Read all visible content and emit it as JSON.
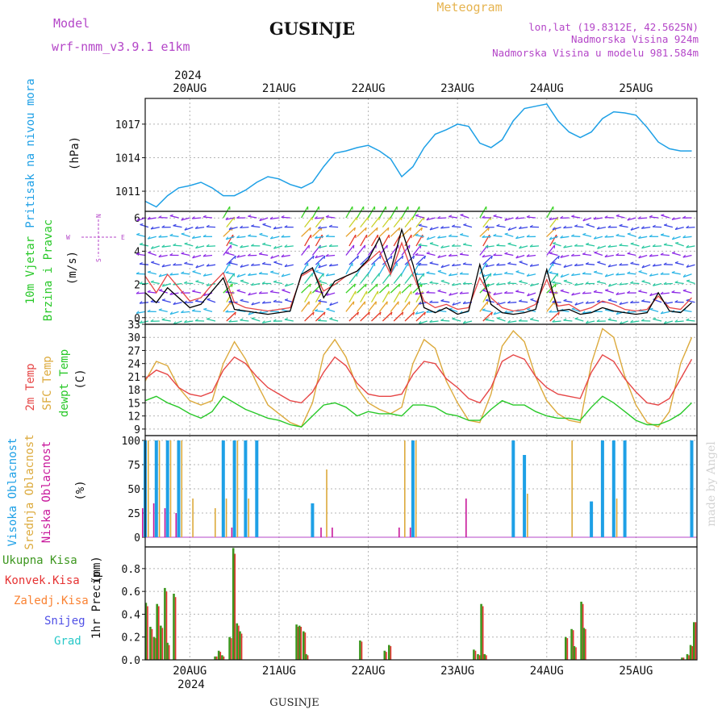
{
  "header": {
    "model_label": "Model",
    "model_name": "wrf-nmm_v3.9.1 e1km",
    "station_title": "GUSINJE",
    "chart_title": "Meteogram",
    "lonlat": "lon,lat (19.8312E, 42.5625N)",
    "altitude": "Nadmorska Visina 924m",
    "altitude_model": "Nadmorska Visina u modelu 981.584m"
  },
  "footer": {
    "station": "GUSINJE",
    "credit": "made by Angel"
  },
  "x_axis": {
    "year": "2024",
    "days": [
      "20AUG",
      "21AUG",
      "22AUG",
      "23AUG",
      "24AUG",
      "25AUG"
    ]
  },
  "colors": {
    "pressure": "#1ea0e6",
    "temp2m": "#e64646",
    "sfc": "#dcaa3c",
    "dewpt": "#28c828",
    "high_cloud": "#1ea0e6",
    "mid_cloud": "#dcaa3c",
    "low_cloud": "#c8189b",
    "total_precip": "#3c961e",
    "conv_precip": "#e63232",
    "frozen": "#fa8232",
    "snow": "#5050e6",
    "graupel": "#28c8c8",
    "wind_speed": "#000000",
    "wind_gust": "#e64646"
  },
  "chart_data": [
    {
      "id": "pressure",
      "type": "line",
      "ylabel_top": "Pritisak na nivou mora",
      "ylabel_unit": "(hPa)",
      "yticks": [
        1011,
        1014,
        1017
      ],
      "ylim": [
        1009.2,
        1019.3
      ],
      "grid": true,
      "x_hours": [
        0,
        3,
        6,
        9,
        12,
        15,
        18,
        21,
        24,
        27,
        30,
        33,
        36,
        39,
        42,
        45,
        48,
        51,
        54,
        57,
        60,
        63,
        66,
        69,
        72,
        75,
        78,
        81,
        84,
        87,
        90,
        93,
        96,
        99,
        102,
        105,
        108,
        111,
        114,
        117,
        120,
        123,
        126,
        129,
        132,
        135,
        138,
        141,
        144,
        147
      ],
      "series": [
        {
          "values": [
            1010.1,
            1009.6,
            1010.6,
            1011.3,
            1011.5,
            1011.8,
            1011.3,
            1010.6,
            1010.6,
            1011.1,
            1011.8,
            1012.3,
            1012.1,
            1011.6,
            1011.3,
            1011.8,
            1013.2,
            1014.4,
            1014.6,
            1014.9,
            1015.1,
            1014.6,
            1013.9,
            1012.3,
            1013.2,
            1014.9,
            1016.1,
            1016.5,
            1017.0,
            1016.8,
            1015.3,
            1014.9,
            1015.6,
            1017.3,
            1018.4,
            1018.6,
            1018.8,
            1017.3,
            1016.3,
            1015.8,
            1016.3,
            1017.5,
            1018.1,
            1018.0,
            1017.8,
            1016.7,
            1015.4,
            1014.8,
            1014.6,
            1014.6
          ]
        }
      ]
    },
    {
      "id": "wind",
      "type": "line",
      "ylabel_top": "10m Vjetar",
      "ylabel_bottom": "Brzina i Pravac",
      "ylabel_unit": "(m/s)",
      "compass": {
        "n": "N",
        "w": "W",
        "e": "E",
        "s": "S"
      },
      "yticks": [
        0,
        2,
        4,
        6
      ],
      "ylim": [
        -0.4,
        6.4
      ],
      "grid": true,
      "x_hours": [
        0,
        3,
        6,
        9,
        12,
        15,
        18,
        21,
        24,
        27,
        30,
        33,
        36,
        39,
        42,
        45,
        48,
        51,
        54,
        57,
        60,
        63,
        66,
        69,
        72,
        75,
        78,
        81,
        84,
        87,
        90,
        93,
        96,
        99,
        102,
        105,
        108,
        111,
        114,
        117,
        120,
        123,
        126,
        129,
        132,
        135,
        138,
        141,
        144,
        147
      ],
      "series": [
        {
          "name": "speed",
          "values": [
            1.5,
            0.9,
            1.8,
            1.2,
            0.6,
            0.8,
            1.6,
            2.4,
            0.5,
            0.4,
            0.3,
            0.2,
            0.3,
            0.4,
            2.6,
            3.0,
            1.2,
            2.2,
            2.5,
            2.8,
            3.5,
            4.8,
            2.8,
            5.3,
            3.2,
            0.6,
            0.3,
            0.6,
            0.2,
            0.4,
            3.2,
            0.8,
            0.3,
            0.2,
            0.3,
            0.5,
            2.9,
            0.4,
            0.5,
            0.2,
            0.3,
            0.6,
            0.4,
            0.3,
            0.2,
            0.3,
            1.5,
            0.4,
            0.3,
            0.9
          ]
        },
        {
          "name": "gust",
          "values": [
            2.5,
            1.5,
            2.6,
            1.8,
            1.0,
            1.2,
            2.0,
            2.7,
            0.9,
            0.6,
            0.5,
            0.4,
            0.5,
            0.6,
            2.5,
            2.9,
            1.6,
            2.0,
            2.5,
            2.8,
            3.4,
            4.0,
            2.6,
            4.5,
            2.6,
            1.0,
            0.6,
            0.8,
            0.5,
            0.6,
            2.4,
            1.2,
            0.6,
            0.4,
            0.5,
            0.8,
            2.3,
            0.7,
            0.8,
            0.4,
            0.6,
            1.0,
            0.8,
            0.5,
            0.4,
            0.5,
            1.3,
            0.6,
            0.5,
            1.2
          ]
        }
      ]
    },
    {
      "id": "temperature",
      "type": "line",
      "ylabel_top": "2m Temp",
      "ylabel_mid": "SFC Temp",
      "ylabel_bottom": "dewpt Temp",
      "ylabel_unit": "(C)",
      "yticks": [
        9,
        12,
        15,
        18,
        21,
        24,
        27,
        30,
        33
      ],
      "ylim": [
        7.5,
        33
      ],
      "grid": true,
      "x_hours": [
        0,
        3,
        6,
        9,
        12,
        15,
        18,
        21,
        24,
        27,
        30,
        33,
        36,
        39,
        42,
        45,
        48,
        51,
        54,
        57,
        60,
        63,
        66,
        69,
        72,
        75,
        78,
        81,
        84,
        87,
        90,
        93,
        96,
        99,
        102,
        105,
        108,
        111,
        114,
        117,
        120,
        123,
        126,
        129,
        132,
        135,
        138,
        141,
        144,
        147
      ],
      "series": [
        {
          "name": "2m",
          "values": [
            20.5,
            22.5,
            21.5,
            18.5,
            17,
            16.5,
            17.5,
            22.5,
            25.5,
            24,
            21,
            18.5,
            17,
            15.5,
            15,
            17.5,
            22,
            25.5,
            23.5,
            19.5,
            17,
            16.5,
            16.5,
            17,
            21.5,
            24.5,
            24,
            20.5,
            18.5,
            16,
            15,
            18.5,
            24.5,
            26,
            25,
            21,
            18.5,
            17,
            16.5,
            16,
            22,
            26,
            24.5,
            20.5,
            17.5,
            15,
            14.5,
            16,
            20.5,
            25
          ]
        },
        {
          "name": "sfc",
          "values": [
            20,
            24.5,
            23.5,
            18.5,
            15.5,
            14.5,
            15.5,
            24,
            29,
            25,
            19.5,
            14.5,
            12.5,
            10.5,
            9.5,
            15,
            26,
            29.5,
            25.5,
            18.5,
            15,
            13.5,
            12.5,
            14,
            24,
            29.5,
            27.5,
            20,
            15,
            11,
            10.5,
            17,
            28,
            31.5,
            29,
            21,
            15.5,
            12.5,
            11,
            10.5,
            24,
            32,
            30,
            21,
            14.5,
            10.5,
            9.5,
            13,
            24,
            30
          ]
        },
        {
          "name": "dewpt",
          "values": [
            15.5,
            16.5,
            15,
            14,
            12.5,
            11.5,
            13,
            16.5,
            15,
            13.5,
            12.5,
            11.5,
            11,
            10,
            9.5,
            12,
            14.5,
            15,
            14,
            12,
            13,
            12.5,
            12.5,
            12,
            14.5,
            14.5,
            14,
            12.5,
            12,
            11,
            11,
            13.5,
            15.5,
            14.5,
            14.5,
            13,
            12,
            11.5,
            11.5,
            11,
            14,
            16.5,
            15,
            13,
            11,
            10,
            10,
            11,
            12.5,
            15
          ]
        }
      ]
    },
    {
      "id": "cloud",
      "type": "bar",
      "ylabel_top": "Visoka Oblacnost",
      "ylabel_mid": "Srednja Oblacnost",
      "ylabel_bottom": "Niska Oblacnost",
      "ylabel_unit": "(%)",
      "yticks": [
        0,
        25,
        50,
        75,
        100
      ],
      "ylim": [
        -10,
        105
      ],
      "grid": true,
      "x_hours": [
        0,
        3,
        6,
        9,
        12,
        15,
        18,
        21,
        24,
        27,
        30,
        33,
        36,
        39,
        42,
        45,
        48,
        51,
        54,
        57,
        60,
        63,
        66,
        69,
        72,
        75,
        78,
        81,
        84,
        87,
        90,
        93,
        96,
        99,
        102,
        105,
        108,
        111,
        114,
        117,
        120,
        123,
        126,
        129,
        132,
        135,
        138,
        141,
        144,
        147
      ],
      "series": [
        {
          "name": "high",
          "values": [
            100,
            100,
            100,
            100,
            0,
            0,
            0,
            100,
            100,
            100,
            100,
            0,
            0,
            0,
            0,
            35,
            0,
            0,
            0,
            0,
            0,
            0,
            0,
            0,
            100,
            0,
            0,
            0,
            0,
            0,
            0,
            0,
            0,
            100,
            85,
            0,
            0,
            0,
            0,
            0,
            37,
            100,
            100,
            100,
            0,
            0,
            0,
            0,
            0,
            100
          ]
        },
        {
          "name": "mid",
          "values": [
            100,
            100,
            100,
            100,
            40,
            0,
            30,
            40,
            100,
            40,
            0,
            0,
            0,
            0,
            0,
            0,
            70,
            0,
            0,
            0,
            0,
            0,
            0,
            100,
            100,
            0,
            0,
            0,
            0,
            0,
            0,
            0,
            0,
            0,
            45,
            0,
            0,
            0,
            100,
            0,
            0,
            0,
            40,
            0,
            0,
            0,
            0,
            0,
            0,
            0
          ]
        },
        {
          "name": "low",
          "values": [
            30,
            35,
            30,
            25,
            0,
            0,
            0,
            0,
            10,
            0,
            0,
            0,
            0,
            0,
            0,
            0,
            10,
            10,
            0,
            0,
            0,
            0,
            0,
            10,
            10,
            0,
            0,
            0,
            0,
            40,
            0,
            0,
            0,
            0,
            0,
            0,
            0,
            0,
            0,
            0,
            0,
            0,
            0,
            0,
            0,
            0,
            0,
            0,
            0,
            0
          ]
        }
      ]
    },
    {
      "id": "precip",
      "type": "bar",
      "legend": [
        "Ukupna Kisa",
        "Konvek.Kisa",
        "Zaledj.Kisa",
        "Snijeg",
        "Grad"
      ],
      "ylabel_top": "1hr Precip",
      "ylabel_unit": "(mm)",
      "yticks": [
        0.0,
        0.2,
        0.4,
        0.6,
        0.8
      ],
      "ylim": [
        0,
        0.99
      ],
      "grid": true,
      "bars": [
        {
          "h": 0.3,
          "total": 0.5,
          "conv": 0.47
        },
        {
          "h": 1.5,
          "total": 0.29,
          "conv": 0.27
        },
        {
          "h": 2.5,
          "total": 0.2,
          "conv": 0.19
        },
        {
          "h": 3.3,
          "total": 0.49,
          "conv": 0.47
        },
        {
          "h": 4.3,
          "total": 0.3,
          "conv": 0.28
        },
        {
          "h": 5.4,
          "total": 0.63,
          "conv": 0.6
        },
        {
          "h": 6.1,
          "total": 0.15,
          "conv": 0.13
        },
        {
          "h": 7.8,
          "total": 0.58,
          "conv": 0.55
        },
        {
          "h": 18.9,
          "total": 0.03,
          "conv": 0.03
        },
        {
          "h": 19.9,
          "total": 0.08,
          "conv": 0.07
        },
        {
          "h": 20.8,
          "total": 0.04,
          "conv": 0.03
        },
        {
          "h": 22.8,
          "total": 0.2,
          "conv": 0.19
        },
        {
          "h": 23.8,
          "total": 0.98,
          "conv": 0.93
        },
        {
          "h": 24.8,
          "total": 0.32,
          "conv": 0.3
        },
        {
          "h": 25.6,
          "total": 0.25,
          "conv": 0.23
        },
        {
          "h": 40.8,
          "total": 0.31,
          "conv": 0.29
        },
        {
          "h": 41.6,
          "total": 0.3,
          "conv": 0.29
        },
        {
          "h": 42.7,
          "total": 0.25,
          "conv": 0.24
        },
        {
          "h": 43.4,
          "total": 0.05,
          "conv": 0.04
        },
        {
          "h": 57.9,
          "total": 0.17,
          "conv": 0.16
        },
        {
          "h": 64.5,
          "total": 0.08,
          "conv": 0.07
        },
        {
          "h": 65.7,
          "total": 0.13,
          "conv": 0.12
        },
        {
          "h": 88.5,
          "total": 0.09,
          "conv": 0.08
        },
        {
          "h": 89.6,
          "total": 0.05,
          "conv": 0.04
        },
        {
          "h": 90.5,
          "total": 0.49,
          "conv": 0.47
        },
        {
          "h": 91.4,
          "total": 0.05,
          "conv": 0.04
        },
        {
          "h": 113.2,
          "total": 0.2,
          "conv": 0.19
        },
        {
          "h": 114.8,
          "total": 0.27,
          "conv": 0.26
        },
        {
          "h": 115.5,
          "total": 0.12,
          "conv": 0.11
        },
        {
          "h": 117.4,
          "total": 0.51,
          "conv": 0.49
        },
        {
          "h": 118.1,
          "total": 0.28,
          "conv": 0.27
        },
        {
          "h": 144.5,
          "total": 0.02,
          "conv": 0.02
        },
        {
          "h": 145.9,
          "total": 0.05,
          "conv": 0.04
        },
        {
          "h": 146.8,
          "total": 0.13,
          "conv": 0.12
        },
        {
          "h": 147.7,
          "total": 0.33,
          "conv": 0.33
        }
      ]
    }
  ]
}
